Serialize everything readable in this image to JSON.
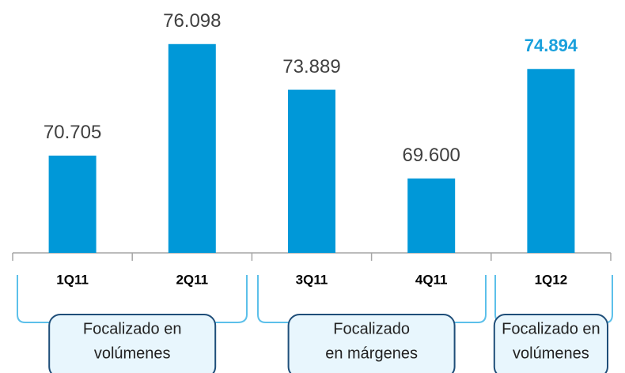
{
  "chart_data": {
    "type": "bar",
    "categories": [
      "1Q11",
      "2Q11",
      "3Q11",
      "4Q11",
      "1Q12"
    ],
    "values": [
      70705,
      76098,
      73889,
      69600,
      74894
    ],
    "value_labels": [
      "70.705",
      "76.098",
      "73.889",
      "69.600",
      "74.894"
    ],
    "value_label_colors": [
      "#404040",
      "#404040",
      "#404040",
      "#404040",
      "#1aa0dc"
    ],
    "color": "#0098d8",
    "ylim": [
      66000,
      78000
    ],
    "groups": [
      {
        "lines": [
          "Focalizado en",
          "volúmenes"
        ],
        "categories": [
          0,
          1
        ]
      },
      {
        "lines": [
          "Focalizado",
          "en márgenes"
        ],
        "categories": [
          2,
          3
        ]
      },
      {
        "lines": [
          "Focalizado en",
          "volúmenes"
        ],
        "categories": [
          4,
          4
        ]
      }
    ]
  }
}
